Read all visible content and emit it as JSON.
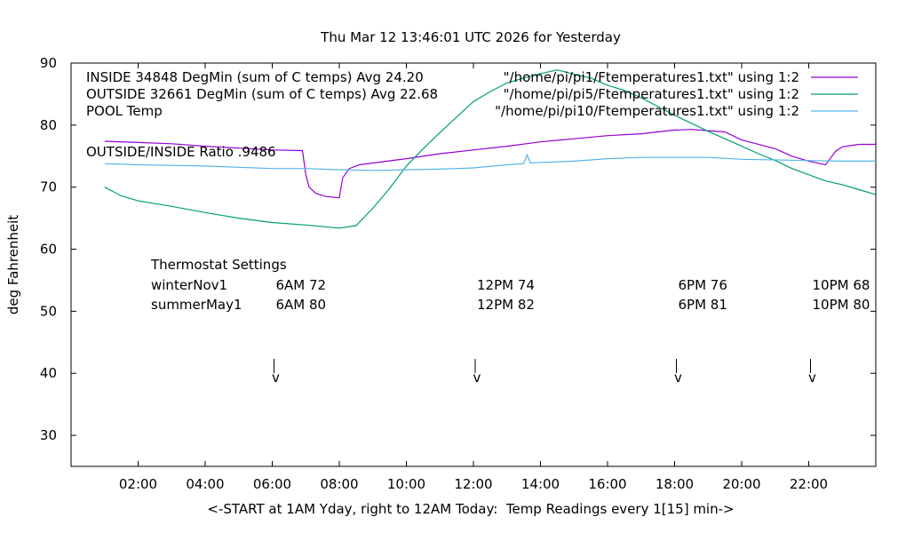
{
  "chart_data": {
    "type": "line",
    "title": "Thu Mar 12 13:46:01 UTC 2026 for Yesterday",
    "xlabel": "<-START at 1AM Yday, right to 12AM Today:  Temp Readings every 1[15] min->",
    "ylabel": "deg Fahrenheit",
    "xlim": [
      0,
      24
    ],
    "ylim": [
      25,
      90
    ],
    "xticks": [
      {
        "x": 2,
        "label": "02:00"
      },
      {
        "x": 4,
        "label": "04:00"
      },
      {
        "x": 6,
        "label": "06:00"
      },
      {
        "x": 8,
        "label": "08:00"
      },
      {
        "x": 10,
        "label": "10:00"
      },
      {
        "x": 12,
        "label": "12:00"
      },
      {
        "x": 14,
        "label": "14:00"
      },
      {
        "x": 16,
        "label": "16:00"
      },
      {
        "x": 18,
        "label": "18:00"
      },
      {
        "x": 20,
        "label": "20:00"
      },
      {
        "x": 22,
        "label": "22:00"
      }
    ],
    "yticks": [
      {
        "y": 30,
        "label": "30"
      },
      {
        "y": 40,
        "label": "40"
      },
      {
        "y": 50,
        "label": "50"
      },
      {
        "y": 60,
        "label": "60"
      },
      {
        "y": 70,
        "label": "70"
      },
      {
        "y": 80,
        "label": "80"
      },
      {
        "y": 90,
        "label": "90"
      }
    ],
    "grid": false,
    "legend_position": "top",
    "series": [
      {
        "name": "INSIDE 34848 DegMin (sum of C temps) Avg 24.20",
        "file_label": "\"/home/pi/pi1/Ftemperatures1.txt\" using 1:2",
        "color": "#9400d3",
        "points": [
          [
            1.0,
            77.4
          ],
          [
            2.0,
            77.2
          ],
          [
            3.0,
            77.0
          ],
          [
            4.0,
            76.6
          ],
          [
            5.0,
            76.3
          ],
          [
            6.0,
            76.0
          ],
          [
            6.9,
            75.9
          ],
          [
            7.0,
            72.0
          ],
          [
            7.1,
            70.0
          ],
          [
            7.3,
            69.0
          ],
          [
            7.6,
            68.5
          ],
          [
            8.0,
            68.3
          ],
          [
            8.1,
            71.5
          ],
          [
            8.3,
            73.0
          ],
          [
            8.6,
            73.6
          ],
          [
            9.0,
            73.9
          ],
          [
            10.0,
            74.6
          ],
          [
            11.0,
            75.4
          ],
          [
            12.0,
            76.0
          ],
          [
            13.0,
            76.6
          ],
          [
            14.0,
            77.3
          ],
          [
            15.0,
            77.8
          ],
          [
            16.0,
            78.3
          ],
          [
            17.0,
            78.6
          ],
          [
            18.0,
            79.2
          ],
          [
            18.5,
            79.3
          ],
          [
            19.0,
            79.1
          ],
          [
            19.5,
            78.9
          ],
          [
            20.0,
            77.6
          ],
          [
            21.0,
            76.2
          ],
          [
            21.5,
            75.0
          ],
          [
            22.0,
            74.2
          ],
          [
            22.5,
            73.6
          ],
          [
            22.6,
            74.3
          ],
          [
            22.8,
            75.8
          ],
          [
            23.0,
            76.5
          ],
          [
            23.5,
            76.9
          ],
          [
            24.0,
            76.9
          ]
        ]
      },
      {
        "name": "OUTSIDE 32661 DegMin (sum of C temps) Avg 22.68",
        "file_label": "\"/home/pi/pi5/Ftemperatures1.txt\" using 1:2",
        "color": "#009e73",
        "points": [
          [
            1.0,
            70.0
          ],
          [
            1.5,
            68.6
          ],
          [
            2.0,
            67.8
          ],
          [
            3.0,
            66.9
          ],
          [
            4.0,
            65.9
          ],
          [
            5.0,
            65.0
          ],
          [
            6.0,
            64.3
          ],
          [
            7.0,
            63.9
          ],
          [
            8.0,
            63.4
          ],
          [
            8.5,
            63.8
          ],
          [
            9.0,
            66.6
          ],
          [
            9.5,
            69.8
          ],
          [
            10.0,
            73.4
          ],
          [
            10.5,
            76.2
          ],
          [
            11.0,
            78.8
          ],
          [
            11.5,
            81.3
          ],
          [
            12.0,
            83.8
          ],
          [
            12.5,
            85.4
          ],
          [
            13.0,
            86.8
          ],
          [
            13.5,
            87.6
          ],
          [
            14.0,
            88.3
          ],
          [
            14.5,
            88.9
          ],
          [
            15.0,
            88.2
          ],
          [
            15.5,
            87.6
          ],
          [
            16.0,
            86.4
          ],
          [
            16.5,
            85.6
          ],
          [
            17.0,
            84.4
          ],
          [
            17.5,
            83.0
          ],
          [
            18.0,
            81.6
          ],
          [
            18.5,
            80.3
          ],
          [
            19.0,
            79.0
          ],
          [
            19.5,
            77.8
          ],
          [
            20.0,
            76.6
          ],
          [
            20.5,
            75.4
          ],
          [
            21.0,
            74.3
          ],
          [
            21.5,
            73.0
          ],
          [
            22.0,
            72.0
          ],
          [
            22.5,
            71.0
          ],
          [
            23.0,
            70.4
          ],
          [
            23.5,
            69.6
          ],
          [
            24.0,
            68.8
          ]
        ]
      },
      {
        "name": "POOL Temp",
        "file_label": "\"/home/pi/pi10/Ftemperatures1.txt\" using 1:2",
        "color": "#56b4e9",
        "points": [
          [
            1.0,
            73.8
          ],
          [
            2.0,
            73.6
          ],
          [
            3.0,
            73.5
          ],
          [
            4.0,
            73.4
          ],
          [
            5.0,
            73.2
          ],
          [
            6.0,
            73.0
          ],
          [
            7.0,
            73.0
          ],
          [
            8.0,
            72.8
          ],
          [
            9.0,
            72.7
          ],
          [
            10.0,
            72.8
          ],
          [
            11.0,
            72.9
          ],
          [
            12.0,
            73.1
          ],
          [
            13.0,
            73.6
          ],
          [
            13.5,
            73.8
          ],
          [
            13.6,
            75.2
          ],
          [
            13.7,
            73.9
          ],
          [
            14.0,
            74.0
          ],
          [
            15.0,
            74.2
          ],
          [
            16.0,
            74.6
          ],
          [
            17.0,
            74.8
          ],
          [
            18.0,
            74.8
          ],
          [
            19.0,
            74.8
          ],
          [
            20.0,
            74.5
          ],
          [
            21.0,
            74.4
          ],
          [
            22.0,
            74.3
          ],
          [
            23.0,
            74.2
          ],
          [
            24.0,
            74.2
          ]
        ]
      }
    ],
    "ratio_label": "OUTSIDE/INSIDE Ratio .9486",
    "thermostat": {
      "title": "Thermostat Settings",
      "rows": [
        {
          "label": "winterNov1",
          "settings": [
            "6AM 72",
            "12PM 74",
            "6PM 76",
            "10PM 68"
          ]
        },
        {
          "label": "summerMay1",
          "settings": [
            "6AM 80",
            "12PM 82",
            "6PM 81",
            "10PM 80"
          ]
        }
      ],
      "marker_hours": [
        6,
        12,
        18,
        22
      ],
      "marker_glyph": "v"
    }
  }
}
